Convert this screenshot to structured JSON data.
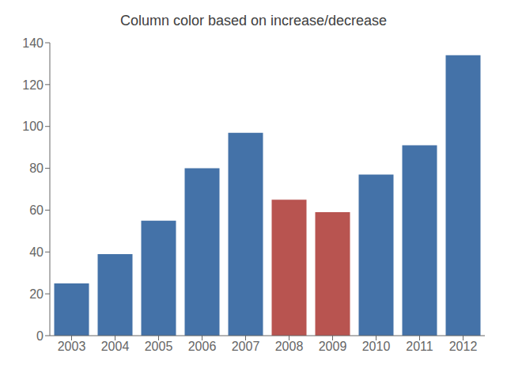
{
  "chart_data": {
    "type": "bar",
    "title": "Column color based on increase/decrease",
    "categories": [
      "2003",
      "2004",
      "2005",
      "2006",
      "2007",
      "2008",
      "2009",
      "2010",
      "2011",
      "2012"
    ],
    "values": [
      25,
      39,
      55,
      80,
      97,
      65,
      59,
      77,
      91,
      134
    ],
    "colors": [
      "#4472A8",
      "#4472A8",
      "#4472A8",
      "#4472A8",
      "#4472A8",
      "#B85450",
      "#B85450",
      "#4472A8",
      "#4472A8",
      "#4472A8"
    ],
    "ylim": [
      0,
      140
    ],
    "yticks": [
      0,
      20,
      40,
      60,
      80,
      100,
      120,
      140
    ],
    "grid": false
  }
}
